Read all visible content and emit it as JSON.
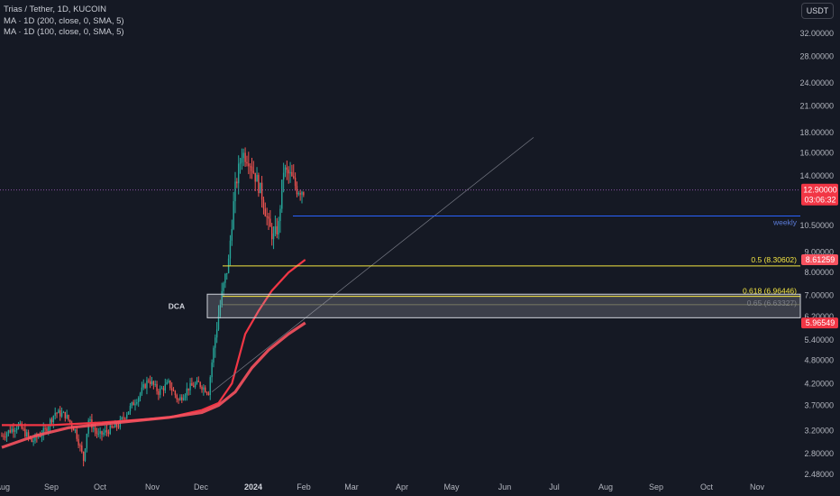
{
  "legend": {
    "title": "Trias / Tether, 1D, KUCOIN",
    "ma200": "MA · 1D (200, close, 0, SMA, 5)",
    "ma100": "MA · 1D (100, close, 0, SMA, 5)"
  },
  "currency_button": "USDT",
  "colors": {
    "background": "#151924",
    "candle_up": "#26a69a",
    "candle_down": "#ef5350",
    "ma200": "#f23645",
    "ma100": "#f7525f",
    "fib_line": "#f5e642",
    "weekly_line": "#2962ff",
    "price_tag": "#f23645",
    "ma_tag": "#f7525f"
  },
  "chart_data": {
    "type": "candlestick",
    "symbol": "Trias / Tether",
    "interval": "1D",
    "exchange": "KUCOIN",
    "y_scale": "log",
    "y_ticks": [
      "32.00000",
      "28.00000",
      "24.00000",
      "21.00000",
      "18.00000",
      "16.00000",
      "14.00000",
      "10.50000",
      "9.00000",
      "8.00000",
      "7.00000",
      "6.20000",
      "5.40000",
      "4.80000",
      "4.20000",
      "3.70000",
      "3.20000",
      "2.80000",
      "2.48000"
    ],
    "x_ticks": [
      "Aug",
      "Sep",
      "Oct",
      "Nov",
      "Dec",
      "2024",
      "Feb",
      "Mar",
      "Apr",
      "May",
      "Jun",
      "Jul",
      "Aug",
      "Sep",
      "Oct",
      "Nov"
    ],
    "x_tick_bold": "2024",
    "hidden_tick_labels": [
      "12.00000",
      "6.60000"
    ],
    "price_data": [
      {
        "period": "Aug",
        "low": 2.9,
        "high": 3.6,
        "trend": "flat"
      },
      {
        "period": "Sep",
        "low": 2.9,
        "high": 3.9,
        "trend": "flat"
      },
      {
        "period": "Oct",
        "low": 2.55,
        "high": 3.8,
        "trend": "dip then recover"
      },
      {
        "period": "Nov",
        "low": 3.3,
        "high": 4.6,
        "trend": "rising"
      },
      {
        "period": "Dec",
        "low": 3.9,
        "high": 17.5,
        "trend": "breakout"
      },
      {
        "period": "Jan",
        "low": 9.3,
        "high": 17.5,
        "trend": "pullback"
      },
      {
        "period": "Feb",
        "low": 12.3,
        "high": 15.8,
        "trend": "consolidation"
      }
    ],
    "last_price": {
      "value": "12.90000",
      "countdown": "03:06:32"
    },
    "ma200_last": "5.96549",
    "ma100_last": "8.61259",
    "horizontal_levels": [
      {
        "label": "0.5 (8.30602)",
        "value": 8.30602
      },
      {
        "label": "0.618 (6.96446)",
        "value": 6.96446
      },
      {
        "label": "0.65 (6.63327)",
        "value": 6.63327
      },
      {
        "label": "weekly",
        "value": 11.1
      }
    ],
    "zone": {
      "label": "DCA",
      "top": 7.05,
      "bottom": 6.15
    },
    "trendline": {
      "from": {
        "date": "Dec",
        "price": 4.0
      },
      "to": {
        "date": "Jun",
        "price": 17.5
      }
    }
  }
}
